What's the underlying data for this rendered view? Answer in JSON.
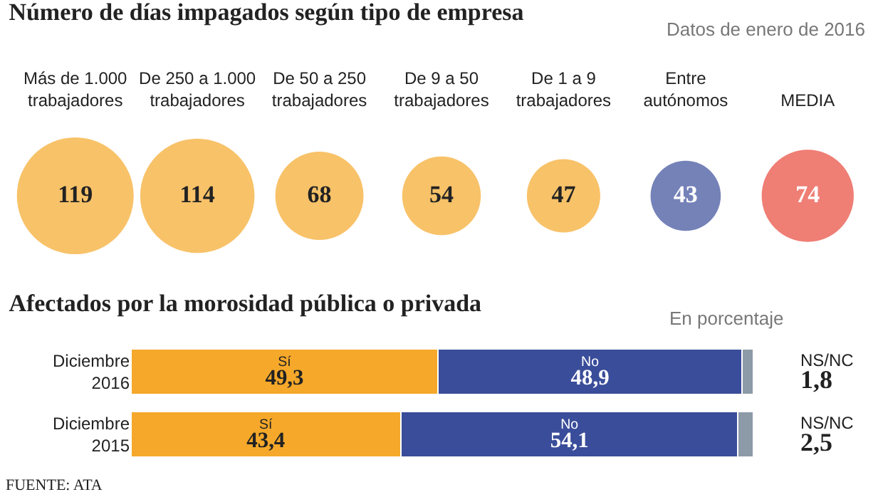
{
  "chart_data": [
    {
      "type": "other",
      "title": "Número de días impagados según tipo de empresa",
      "subtitle": "Datos de enero de 2016",
      "categories": [
        "Más de 1.000 trabajadores",
        "De 250 a 1.000 trabajadores",
        "De 50 a 250 trabajadores",
        "De 9 a 50 trabajadores",
        "De 1 a 9 trabajadores",
        "Entre autónomos",
        "MEDIA"
      ],
      "values": [
        119,
        114,
        68,
        54,
        47,
        43,
        74
      ],
      "colors": [
        "#f5a82a",
        "#f5a82a",
        "#f5a82a",
        "#f5a82a",
        "#f5a82a",
        "#3a4d9a",
        "#e8473a"
      ],
      "data_labels": true
    },
    {
      "type": "bar",
      "orientation": "horizontal",
      "stacked": true,
      "title": "Afectados por la morosidad pública o privada",
      "subtitle": "En porcentaje",
      "categories": [
        "Diciembre 2016",
        "Diciembre 2015"
      ],
      "series": [
        {
          "name": "Sí",
          "color": "#f5a82a",
          "values": [
            49.3,
            43.4
          ],
          "value_labels": [
            "49,3",
            "43,4"
          ]
        },
        {
          "name": "No",
          "color": "#3a4d9a",
          "values": [
            48.9,
            54.1
          ],
          "value_labels": [
            "48,9",
            "54,1"
          ]
        },
        {
          "name": "NS/NC",
          "color": "#8d9aa8",
          "values": [
            1.8,
            2.5
          ],
          "value_labels": [
            "1,8",
            "2,5"
          ]
        }
      ],
      "tick_labels": "y",
      "annotations": [
        "FUENTE: ATA"
      ]
    }
  ]
}
